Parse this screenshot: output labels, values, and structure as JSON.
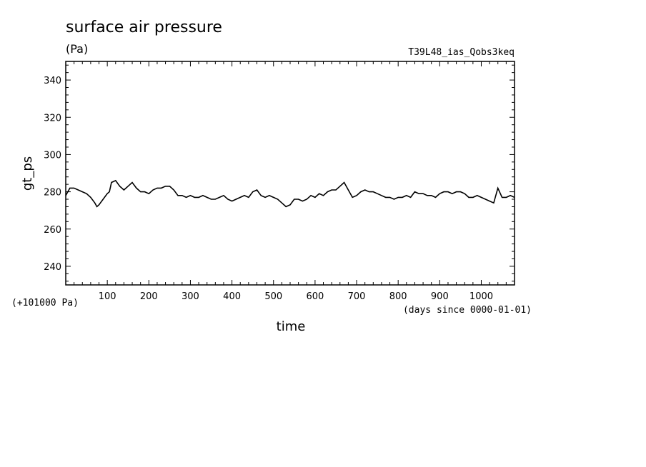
{
  "chart_data": {
    "type": "line",
    "title": "surface air pressure",
    "units": "(Pa)",
    "experiment": "T39L48_ias_Qobs3keq",
    "xlabel": "time",
    "x_units": "(days since 0000-01-01)",
    "ylabel": "gt_ps",
    "offset_label": "(+101000 Pa)",
    "xlim": [
      0,
      1080
    ],
    "ylim": [
      230,
      350
    ],
    "x_ticks": [
      100,
      200,
      300,
      400,
      500,
      600,
      700,
      800,
      900,
      1000
    ],
    "y_ticks": [
      240,
      260,
      280,
      300,
      320,
      340
    ],
    "grid": false,
    "series": [
      {
        "x": [
          0,
          10,
          20,
          30,
          40,
          50,
          60,
          70,
          75,
          80,
          90,
          100,
          105,
          110,
          120,
          130,
          140,
          150,
          160,
          170,
          180,
          190,
          200,
          210,
          220,
          230,
          240,
          250,
          260,
          270,
          280,
          290,
          300,
          310,
          320,
          330,
          340,
          350,
          360,
          370,
          380,
          390,
          400,
          410,
          420,
          430,
          440,
          450,
          460,
          470,
          480,
          490,
          500,
          510,
          520,
          530,
          540,
          550,
          560,
          570,
          580,
          590,
          600,
          610,
          620,
          630,
          640,
          650,
          660,
          670,
          680,
          690,
          700,
          710,
          720,
          730,
          740,
          750,
          760,
          770,
          780,
          790,
          800,
          810,
          820,
          830,
          840,
          850,
          860,
          870,
          880,
          890,
          900,
          910,
          920,
          930,
          940,
          950,
          960,
          970,
          980,
          990,
          1000,
          1010,
          1020,
          1030,
          1040,
          1050,
          1060,
          1070,
          1080
        ],
        "y": [
          278,
          282,
          282,
          281,
          280,
          279,
          277,
          274,
          272,
          273,
          276,
          279,
          280,
          285,
          286,
          283,
          281,
          283,
          285,
          282,
          280,
          280,
          279,
          281,
          282,
          282,
          283,
          283,
          281,
          278,
          278,
          277,
          278,
          277,
          277,
          278,
          277,
          276,
          276,
          277,
          278,
          276,
          275,
          276,
          277,
          278,
          277,
          280,
          281,
          278,
          277,
          278,
          277,
          276,
          274,
          272,
          273,
          276,
          276,
          275,
          276,
          278,
          277,
          279,
          278,
          280,
          281,
          281,
          283,
          285,
          281,
          277,
          278,
          280,
          281,
          280,
          280,
          279,
          278,
          277,
          277,
          276,
          277,
          277,
          278,
          277,
          280,
          279,
          279,
          278,
          278,
          277,
          279,
          280,
          280,
          279,
          280,
          280,
          279,
          277,
          277,
          278,
          277,
          276,
          275,
          274,
          282,
          277,
          277,
          278,
          277
        ]
      }
    ]
  }
}
